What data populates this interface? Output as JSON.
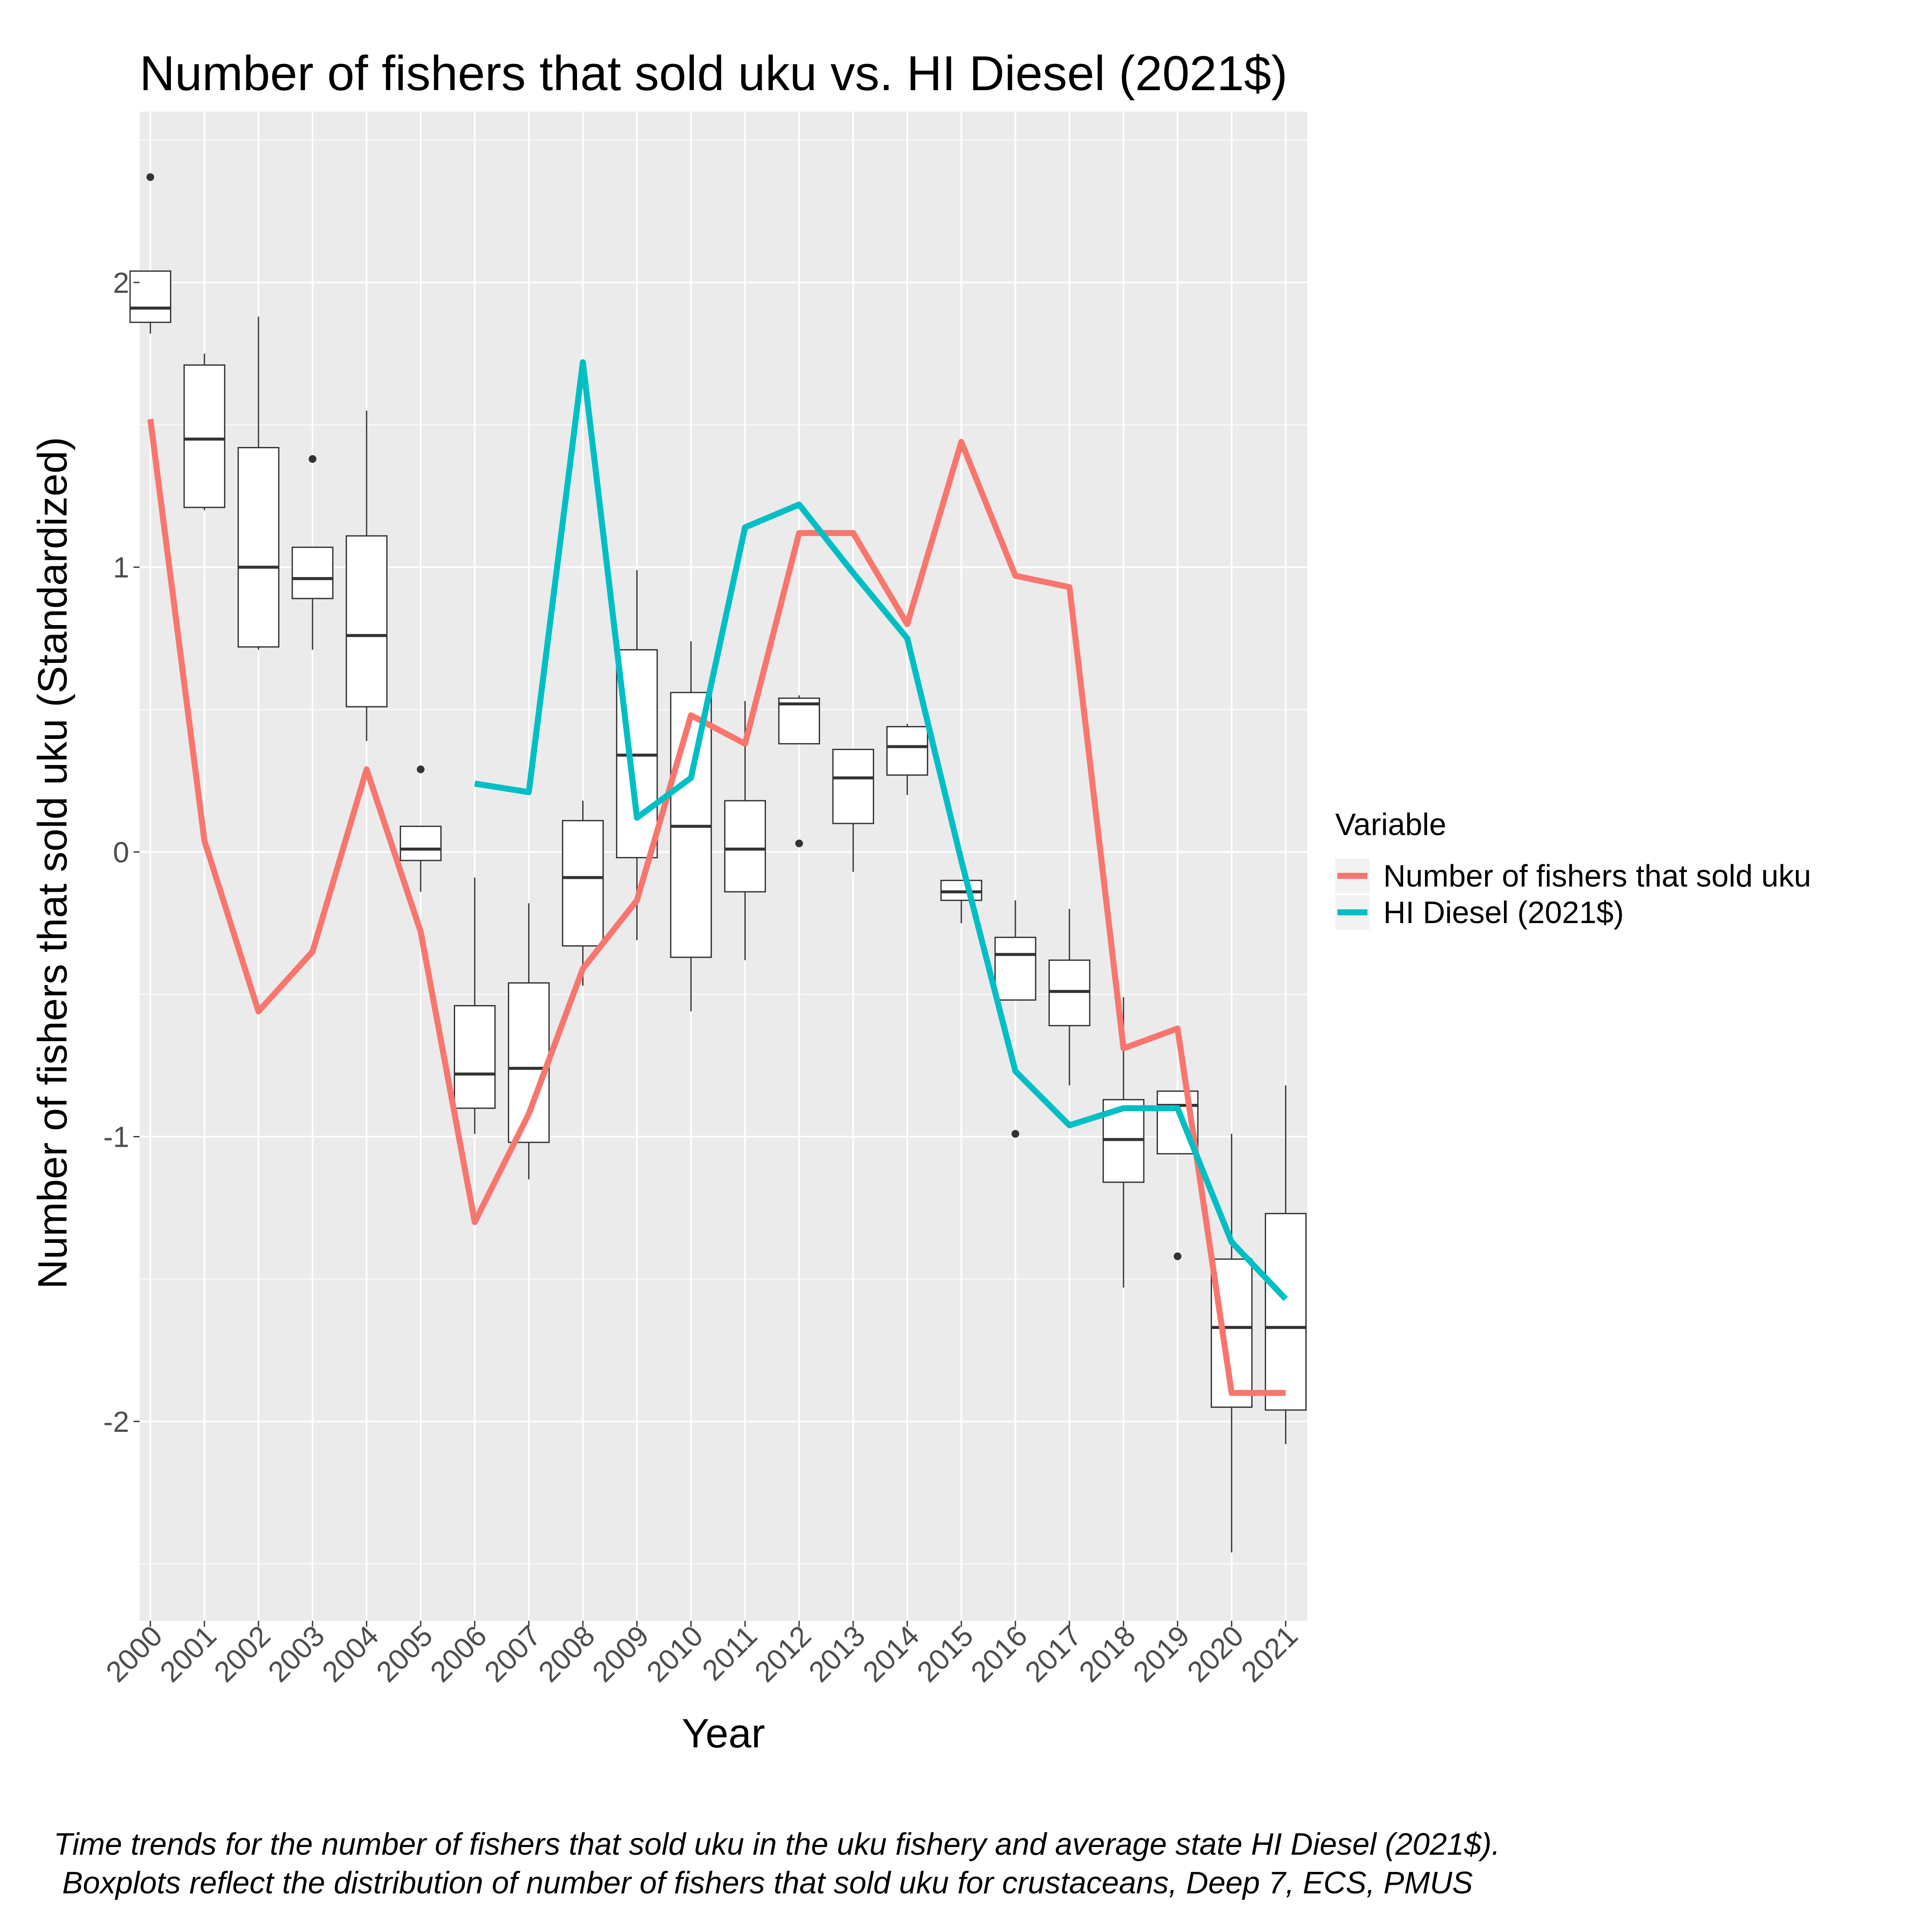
{
  "chart_data": {
    "type": "box+line",
    "title": "Number of fishers that sold uku vs. HI Diesel (2021$)",
    "xlabel": "Year",
    "ylabel": "Number of fishers that sold uku (Standardized)",
    "ylim": [
      -2.7,
      2.6
    ],
    "yticks": [
      -2,
      -1,
      0,
      1,
      2
    ],
    "ytick_labels": [
      "-2",
      "-1",
      "0",
      "1",
      "2"
    ],
    "categories": [
      "2000",
      "2001",
      "2002",
      "2003",
      "2004",
      "2005",
      "2006",
      "2007",
      "2008",
      "2009",
      "2010",
      "2011",
      "2012",
      "2013",
      "2014",
      "2015",
      "2016",
      "2017",
      "2018",
      "2019",
      "2020",
      "2021"
    ],
    "boxes": [
      {
        "year": "2000",
        "min": 1.82,
        "q1": 1.86,
        "median": 1.91,
        "q3": 2.04,
        "max": 2.04,
        "outliers": [
          2.37
        ]
      },
      {
        "year": "2001",
        "min": 1.2,
        "q1": 1.21,
        "median": 1.45,
        "q3": 1.71,
        "max": 1.75,
        "outliers": []
      },
      {
        "year": "2002",
        "min": 0.71,
        "q1": 0.72,
        "median": 1.0,
        "q3": 1.42,
        "max": 1.88,
        "outliers": []
      },
      {
        "year": "2003",
        "min": 0.71,
        "q1": 0.89,
        "median": 0.96,
        "q3": 1.07,
        "max": 1.07,
        "outliers": [
          1.38
        ]
      },
      {
        "year": "2004",
        "min": 0.39,
        "q1": 0.51,
        "median": 0.76,
        "q3": 1.11,
        "max": 1.55,
        "outliers": []
      },
      {
        "year": "2005",
        "min": -0.14,
        "q1": -0.03,
        "median": 0.01,
        "q3": 0.09,
        "max": 0.09,
        "outliers": [
          0.29
        ]
      },
      {
        "year": "2006",
        "min": -0.99,
        "q1": -0.9,
        "median": -0.78,
        "q3": -0.54,
        "max": -0.09,
        "outliers": []
      },
      {
        "year": "2007",
        "min": -1.15,
        "q1": -1.02,
        "median": -0.76,
        "q3": -0.46,
        "max": -0.18,
        "outliers": []
      },
      {
        "year": "2008",
        "min": -0.47,
        "q1": -0.33,
        "median": -0.09,
        "q3": 0.11,
        "max": 0.18,
        "outliers": []
      },
      {
        "year": "2009",
        "min": -0.31,
        "q1": -0.02,
        "median": 0.34,
        "q3": 0.71,
        "max": 0.99,
        "outliers": []
      },
      {
        "year": "2010",
        "min": -0.56,
        "q1": -0.37,
        "median": 0.09,
        "q3": 0.56,
        "max": 0.74,
        "outliers": []
      },
      {
        "year": "2011",
        "min": -0.38,
        "q1": -0.14,
        "median": 0.01,
        "q3": 0.18,
        "max": 0.53,
        "outliers": []
      },
      {
        "year": "2012",
        "min": 0.38,
        "q1": 0.38,
        "median": 0.52,
        "q3": 0.54,
        "max": 0.55,
        "outliers": [
          0.03
        ]
      },
      {
        "year": "2013",
        "min": -0.07,
        "q1": 0.1,
        "median": 0.26,
        "q3": 0.36,
        "max": 0.36,
        "outliers": []
      },
      {
        "year": "2014",
        "min": 0.2,
        "q1": 0.27,
        "median": 0.37,
        "q3": 0.44,
        "max": 0.45,
        "outliers": []
      },
      {
        "year": "2015",
        "min": -0.25,
        "q1": -0.17,
        "median": -0.14,
        "q3": -0.1,
        "max": -0.1,
        "outliers": []
      },
      {
        "year": "2016",
        "min": -0.52,
        "q1": -0.52,
        "median": -0.36,
        "q3": -0.3,
        "max": -0.17,
        "outliers": [
          -0.99
        ]
      },
      {
        "year": "2017",
        "min": -0.82,
        "q1": -0.61,
        "median": -0.49,
        "q3": -0.38,
        "max": -0.2,
        "outliers": []
      },
      {
        "year": "2018",
        "min": -1.53,
        "q1": -1.16,
        "median": -1.01,
        "q3": -0.87,
        "max": -0.51,
        "outliers": []
      },
      {
        "year": "2019",
        "min": -1.06,
        "q1": -1.06,
        "median": -0.89,
        "q3": -0.84,
        "max": -0.84,
        "outliers": [
          -1.42
        ]
      },
      {
        "year": "2020",
        "min": -2.46,
        "q1": -1.95,
        "median": -1.67,
        "q3": -1.43,
        "max": -0.99,
        "outliers": []
      },
      {
        "year": "2021",
        "min": -2.08,
        "q1": -1.96,
        "median": -1.67,
        "q3": -1.27,
        "max": -0.82,
        "outliers": []
      }
    ],
    "series": [
      {
        "name": "Number of fishers that sold uku",
        "color": "#F8766D",
        "x": [
          "2000",
          "2001",
          "2002",
          "2003",
          "2004",
          "2005",
          "2006",
          "2007",
          "2008",
          "2009",
          "2010",
          "2011",
          "2012",
          "2013",
          "2014",
          "2015",
          "2016",
          "2017",
          "2018",
          "2019",
          "2020",
          "2021"
        ],
        "values": [
          1.52,
          0.04,
          -0.56,
          -0.35,
          0.29,
          -0.28,
          -1.3,
          -0.92,
          -0.41,
          -0.17,
          0.48,
          0.38,
          1.12,
          1.12,
          0.8,
          1.44,
          0.97,
          0.93,
          -0.69,
          -0.62,
          -1.9,
          -1.9
        ]
      },
      {
        "name": "HI Diesel (2021$)",
        "color": "#00BFC4",
        "x": [
          "2006",
          "2007",
          "2008",
          "2009",
          "2010",
          "2011",
          "2012",
          "2013",
          "2014",
          "2015",
          "2016",
          "2017",
          "2018",
          "2019",
          "2020",
          "2021"
        ],
        "values": [
          0.24,
          0.21,
          1.72,
          0.12,
          0.26,
          1.14,
          1.22,
          0.98,
          0.75,
          -0.03,
          -0.77,
          -0.96,
          -0.9,
          -0.9,
          -1.37,
          -1.57
        ]
      }
    ],
    "legend": {
      "title": "Variable",
      "position": "right"
    },
    "caption": [
      "Time trends for the number of fishers that sold uku in the uku fishery and average state HI Diesel (2021$).",
      " Boxplots reflect the distribution of number of fishers that sold uku for crustaceans, Deep 7, ECS, PMUS"
    ]
  }
}
